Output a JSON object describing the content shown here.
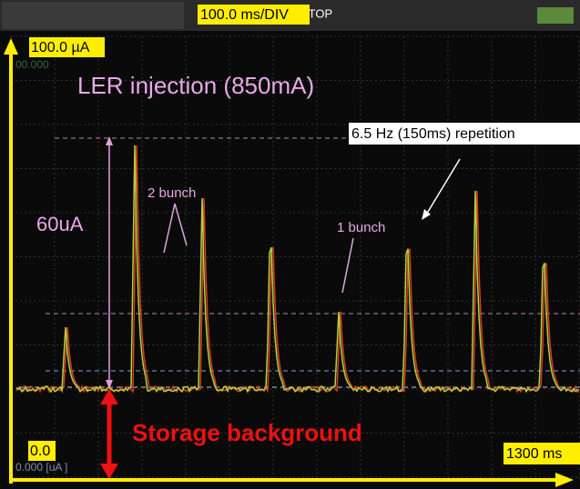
{
  "header": {
    "timebase": "100.0 ms/DIV",
    "mode": "STOP"
  },
  "scope": {
    "top_readout": "00.000",
    "bottom_readout": "0.000  [uA       ]"
  },
  "axes": {
    "y_max": "100.0 µA",
    "y_min": "0.0",
    "x_max": "1300 ms"
  },
  "annotations": {
    "title": "LER injection (850mA)",
    "repetition": "6.5 Hz (150ms) repetition",
    "two_bunch": "2 bunch",
    "one_bunch": "1 bunch",
    "amplitude": "60uA",
    "background": "Storage background"
  }
}
